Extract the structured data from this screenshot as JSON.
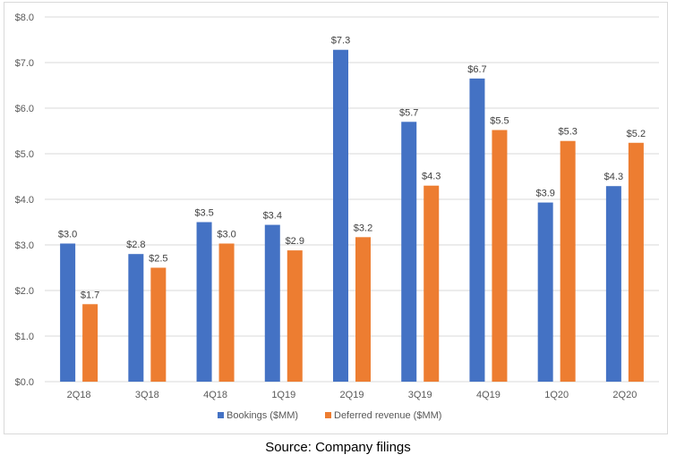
{
  "chart_data": {
    "type": "bar",
    "title": "",
    "xlabel": "",
    "ylabel": "",
    "categories": [
      "2Q18",
      "3Q18",
      "4Q18",
      "1Q19",
      "2Q19",
      "3Q19",
      "4Q19",
      "1Q20",
      "2Q20"
    ],
    "series": [
      {
        "name": "Bookings ($MM)",
        "color": "#4472c4",
        "values": [
          3.03,
          2.8,
          3.5,
          3.44,
          7.28,
          5.7,
          6.65,
          3.93,
          4.29
        ],
        "labels": [
          "$3.0",
          "$2.8",
          "$3.5",
          "$3.4",
          "$7.3",
          "$5.7",
          "$6.7",
          "$3.9",
          "$4.3"
        ]
      },
      {
        "name": "Deferred revenue ($MM)",
        "color": "#ed7d31",
        "values": [
          1.7,
          2.5,
          3.03,
          2.88,
          3.17,
          4.3,
          5.52,
          5.28,
          5.24
        ],
        "labels": [
          "$1.7",
          "$2.5",
          "$3.0",
          "$2.9",
          "$3.2",
          "$4.3",
          "$5.5",
          "$5.3",
          "$5.2"
        ]
      }
    ],
    "ylim": [
      0,
      8
    ],
    "yticks": [
      0,
      1,
      2,
      3,
      4,
      5,
      6,
      7,
      8
    ],
    "ytick_labels": [
      "$0.0",
      "$1.0",
      "$2.0",
      "$3.0",
      "$4.0",
      "$5.0",
      "$6.0",
      "$7.0",
      "$8.0"
    ],
    "grid": true,
    "legend_position": "bottom",
    "gridline_color": "#d9d9d9"
  },
  "caption": "Source: Company filings"
}
